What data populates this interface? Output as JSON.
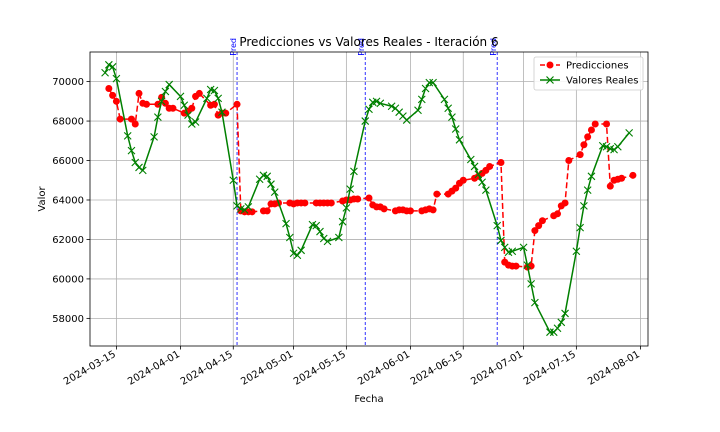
{
  "chart_data": {
    "type": "line",
    "title": "Predicciones vs Valores Reales - Iteración 6",
    "xlabel": "Fecha",
    "ylabel": "Valor",
    "x_type": "date",
    "xlim": [
      "2024-03-08",
      "2024-08-03"
    ],
    "ylim": [
      56600,
      71500
    ],
    "grid": true,
    "legend_position": "top-right",
    "x_ticks": [
      "2024-03-15",
      "2024-04-01",
      "2024-04-15",
      "2024-05-01",
      "2024-05-15",
      "2024-06-01",
      "2024-06-15",
      "2024-07-01",
      "2024-07-15",
      "2024-08-01"
    ],
    "y_ticks": [
      58000,
      60000,
      62000,
      64000,
      66000,
      68000,
      70000
    ],
    "vertical_lines": [
      {
        "x": "2024-04-16",
        "label": "Pred"
      },
      {
        "x": "2024-05-20",
        "label": "Pred"
      },
      {
        "x": "2024-06-24",
        "label": "Pred"
      }
    ],
    "series": [
      {
        "name": "Predicciones",
        "color": "#ff0000",
        "line_style": "dashed",
        "marker": "circle",
        "points": [
          [
            "2024-03-13",
            69650
          ],
          [
            "2024-03-14",
            69300
          ],
          [
            "2024-03-15",
            69000
          ],
          [
            "2024-03-16",
            68100
          ],
          [
            "2024-03-19",
            68100
          ],
          [
            "2024-03-20",
            67850
          ],
          [
            "2024-03-21",
            69400
          ],
          [
            "2024-03-22",
            68900
          ],
          [
            "2024-03-23",
            68850
          ],
          [
            "2024-03-26",
            68850
          ],
          [
            "2024-03-27",
            69200
          ],
          [
            "2024-03-28",
            68900
          ],
          [
            "2024-03-29",
            68650
          ],
          [
            "2024-03-30",
            68650
          ],
          [
            "2024-04-02",
            68400
          ],
          [
            "2024-04-03",
            68500
          ],
          [
            "2024-04-04",
            68650
          ],
          [
            "2024-04-05",
            69250
          ],
          [
            "2024-04-06",
            69400
          ],
          [
            "2024-04-09",
            68800
          ],
          [
            "2024-04-10",
            68850
          ],
          [
            "2024-04-11",
            68300
          ],
          [
            "2024-04-12",
            68400
          ],
          [
            "2024-04-13",
            68400
          ],
          [
            "2024-04-16",
            68850
          ],
          [
            "2024-04-17",
            63450
          ],
          [
            "2024-04-18",
            63400
          ],
          [
            "2024-04-19",
            63400
          ],
          [
            "2024-04-20",
            63400
          ],
          [
            "2024-04-23",
            63450
          ],
          [
            "2024-04-24",
            63450
          ],
          [
            "2024-04-25",
            63800
          ],
          [
            "2024-04-26",
            63800
          ],
          [
            "2024-04-27",
            63850
          ],
          [
            "2024-04-30",
            63850
          ],
          [
            "2024-05-01",
            63800
          ],
          [
            "2024-05-02",
            63850
          ],
          [
            "2024-05-03",
            63850
          ],
          [
            "2024-05-04",
            63850
          ],
          [
            "2024-05-07",
            63850
          ],
          [
            "2024-05-08",
            63850
          ],
          [
            "2024-05-09",
            63850
          ],
          [
            "2024-05-10",
            63850
          ],
          [
            "2024-05-11",
            63850
          ],
          [
            "2024-05-14",
            63950
          ],
          [
            "2024-05-15",
            64000
          ],
          [
            "2024-05-16",
            64000
          ],
          [
            "2024-05-17",
            64050
          ],
          [
            "2024-05-18",
            64050
          ],
          [
            "2024-05-21",
            64100
          ],
          [
            "2024-05-22",
            63750
          ],
          [
            "2024-05-23",
            63650
          ],
          [
            "2024-05-24",
            63650
          ],
          [
            "2024-05-25",
            63550
          ],
          [
            "2024-05-28",
            63450
          ],
          [
            "2024-05-29",
            63500
          ],
          [
            "2024-05-30",
            63500
          ],
          [
            "2024-05-31",
            63450
          ],
          [
            "2024-06-01",
            63450
          ],
          [
            "2024-06-04",
            63450
          ],
          [
            "2024-06-05",
            63500
          ],
          [
            "2024-06-06",
            63550
          ],
          [
            "2024-06-07",
            63500
          ],
          [
            "2024-06-08",
            64300
          ],
          [
            "2024-06-11",
            64300
          ],
          [
            "2024-06-12",
            64450
          ],
          [
            "2024-06-13",
            64600
          ],
          [
            "2024-06-14",
            64850
          ],
          [
            "2024-06-15",
            65000
          ],
          [
            "2024-06-18",
            65100
          ],
          [
            "2024-06-19",
            65200
          ],
          [
            "2024-06-20",
            65350
          ],
          [
            "2024-06-21",
            65500
          ],
          [
            "2024-06-22",
            65700
          ],
          [
            "2024-06-25",
            65900
          ],
          [
            "2024-06-26",
            60850
          ],
          [
            "2024-06-27",
            60700
          ],
          [
            "2024-06-28",
            60650
          ],
          [
            "2024-06-29",
            60650
          ],
          [
            "2024-07-02",
            60600
          ],
          [
            "2024-07-03",
            60650
          ],
          [
            "2024-07-04",
            62450
          ],
          [
            "2024-07-05",
            62700
          ],
          [
            "2024-07-06",
            62950
          ],
          [
            "2024-07-09",
            63200
          ],
          [
            "2024-07-10",
            63300
          ],
          [
            "2024-07-11",
            63700
          ],
          [
            "2024-07-12",
            63850
          ],
          [
            "2024-07-13",
            66000
          ],
          [
            "2024-07-16",
            66300
          ],
          [
            "2024-07-17",
            66800
          ],
          [
            "2024-07-18",
            67200
          ],
          [
            "2024-07-19",
            67550
          ],
          [
            "2024-07-20",
            67850
          ],
          [
            "2024-07-23",
            67850
          ],
          [
            "2024-07-24",
            64700
          ],
          [
            "2024-07-25",
            65000
          ],
          [
            "2024-07-26",
            65050
          ],
          [
            "2024-07-27",
            65100
          ],
          [
            "2024-07-30",
            65250
          ]
        ]
      },
      {
        "name": "Valores Reales",
        "color": "#008000",
        "line_style": "solid",
        "marker": "x",
        "points": [
          [
            "2024-03-12",
            70450
          ],
          [
            "2024-03-13",
            70850
          ],
          [
            "2024-03-14",
            70750
          ],
          [
            "2024-03-15",
            70150
          ],
          [
            "2024-03-18",
            67250
          ],
          [
            "2024-03-19",
            66500
          ],
          [
            "2024-03-20",
            65900
          ],
          [
            "2024-03-21",
            65650
          ],
          [
            "2024-03-22",
            65500
          ],
          [
            "2024-03-25",
            67200
          ],
          [
            "2024-03-26",
            68200
          ],
          [
            "2024-03-27",
            69000
          ],
          [
            "2024-03-28",
            69500
          ],
          [
            "2024-03-29",
            69850
          ],
          [
            "2024-04-01",
            69250
          ],
          [
            "2024-04-02",
            68800
          ],
          [
            "2024-04-03",
            68300
          ],
          [
            "2024-04-04",
            67850
          ],
          [
            "2024-04-05",
            67950
          ],
          [
            "2024-04-08",
            69150
          ],
          [
            "2024-04-09",
            69600
          ],
          [
            "2024-04-10",
            69550
          ],
          [
            "2024-04-11",
            69150
          ],
          [
            "2024-04-12",
            68450
          ],
          [
            "2024-04-15",
            65000
          ],
          [
            "2024-04-16",
            63700
          ],
          [
            "2024-04-17",
            63550
          ],
          [
            "2024-04-18",
            63500
          ],
          [
            "2024-04-19",
            63650
          ],
          [
            "2024-04-22",
            65050
          ],
          [
            "2024-04-23",
            65250
          ],
          [
            "2024-04-24",
            65200
          ],
          [
            "2024-04-25",
            64800
          ],
          [
            "2024-04-26",
            64400
          ],
          [
            "2024-04-29",
            62800
          ],
          [
            "2024-04-30",
            62100
          ],
          [
            "2024-05-01",
            61300
          ],
          [
            "2024-05-02",
            61200
          ],
          [
            "2024-05-03",
            61450
          ],
          [
            "2024-05-06",
            62750
          ],
          [
            "2024-05-07",
            62700
          ],
          [
            "2024-05-08",
            62400
          ],
          [
            "2024-05-09",
            62050
          ],
          [
            "2024-05-10",
            61900
          ],
          [
            "2024-05-13",
            62100
          ],
          [
            "2024-05-14",
            62900
          ],
          [
            "2024-05-15",
            63600
          ],
          [
            "2024-05-16",
            64550
          ],
          [
            "2024-05-17",
            65450
          ],
          [
            "2024-05-20",
            68000
          ],
          [
            "2024-05-21",
            68600
          ],
          [
            "2024-05-22",
            68950
          ],
          [
            "2024-05-23",
            69000
          ],
          [
            "2024-05-24",
            68900
          ],
          [
            "2024-05-27",
            68750
          ],
          [
            "2024-05-28",
            68650
          ],
          [
            "2024-05-29",
            68450
          ],
          [
            "2024-05-30",
            68250
          ],
          [
            "2024-05-31",
            68050
          ],
          [
            "2024-06-03",
            68550
          ],
          [
            "2024-06-04",
            69100
          ],
          [
            "2024-06-05",
            69650
          ],
          [
            "2024-06-06",
            69950
          ],
          [
            "2024-06-07",
            69950
          ],
          [
            "2024-06-10",
            69100
          ],
          [
            "2024-06-11",
            68650
          ],
          [
            "2024-06-12",
            68200
          ],
          [
            "2024-06-13",
            67600
          ],
          [
            "2024-06-14",
            67050
          ],
          [
            "2024-06-17",
            66050
          ],
          [
            "2024-06-18",
            65700
          ],
          [
            "2024-06-19",
            65300
          ],
          [
            "2024-06-20",
            64900
          ],
          [
            "2024-06-21",
            64500
          ],
          [
            "2024-06-24",
            62700
          ],
          [
            "2024-06-25",
            61950
          ],
          [
            "2024-06-26",
            61600
          ],
          [
            "2024-06-27",
            61350
          ],
          [
            "2024-06-28",
            61400
          ],
          [
            "2024-07-01",
            61600
          ],
          [
            "2024-07-02",
            60700
          ],
          [
            "2024-07-03",
            59750
          ],
          [
            "2024-07-04",
            58800
          ],
          [
            "2024-07-08",
            57300
          ],
          [
            "2024-07-09",
            57300
          ],
          [
            "2024-07-10",
            57500
          ],
          [
            "2024-07-11",
            57800
          ],
          [
            "2024-07-12",
            58250
          ],
          [
            "2024-07-15",
            61400
          ],
          [
            "2024-07-16",
            62600
          ],
          [
            "2024-07-17",
            63700
          ],
          [
            "2024-07-18",
            64500
          ],
          [
            "2024-07-19",
            65200
          ],
          [
            "2024-07-22",
            66750
          ],
          [
            "2024-07-23",
            66700
          ],
          [
            "2024-07-24",
            66600
          ],
          [
            "2024-07-25",
            66550
          ],
          [
            "2024-07-26",
            66700
          ],
          [
            "2024-07-29",
            67400
          ]
        ]
      }
    ]
  }
}
